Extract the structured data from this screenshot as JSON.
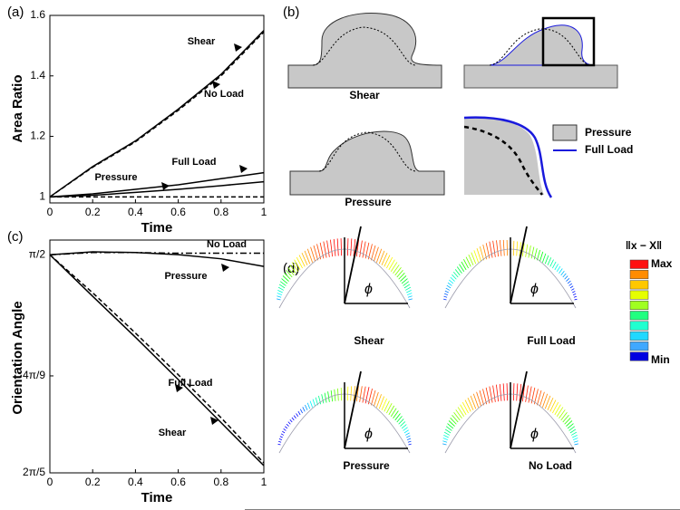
{
  "chart_data": [
    {
      "type": "line",
      "label": "(a)",
      "xlabel": "Time",
      "ylabel": "Area Ratio",
      "x": [
        0,
        0.2,
        0.4,
        0.6,
        0.8,
        1
      ],
      "xlim": [
        0,
        1
      ],
      "xticks": [
        0,
        0.2,
        0.4,
        0.6,
        0.8,
        1
      ],
      "ylim": [
        0.98,
        1.6
      ],
      "yticks": [
        1,
        1.2,
        1.4,
        1.6
      ],
      "series": [
        {
          "name": "Shear",
          "color": "#000000",
          "dash": "solid",
          "values": [
            1,
            1.1,
            1.185,
            1.29,
            1.405,
            1.55
          ]
        },
        {
          "name": "No Load",
          "color": "#000000",
          "dash": "dashed",
          "values": [
            1,
            1.098,
            1.182,
            1.286,
            1.4,
            1.545
          ]
        },
        {
          "name": "Full Load",
          "color": "#000000",
          "dash": "solid",
          "values": [
            1,
            1.01,
            1.025,
            1.04,
            1.06,
            1.08
          ]
        },
        {
          "name": "Pressure",
          "color": "#000000",
          "dash": "solid",
          "values": [
            1,
            1.005,
            1.015,
            1.025,
            1.037,
            1.05
          ]
        },
        {
          "color": "#000000",
          "dash": "dashed",
          "values": [
            1,
            1,
            1,
            1,
            1,
            1
          ]
        }
      ]
    },
    {
      "type": "line",
      "label": "(c)",
      "xlabel": "Time",
      "ylabel": "Orientation Angle",
      "x": [
        0,
        0.2,
        0.4,
        0.6,
        0.8,
        1
      ],
      "xlim": [
        0,
        1
      ],
      "xticks": [
        0,
        0.2,
        0.4,
        0.6,
        0.8,
        1
      ],
      "ylim": [
        1.2566,
        1.592
      ],
      "yticks": [
        {
          "value": 1.5708,
          "label": "π/2"
        },
        {
          "value": 1.3963,
          "label": "4π/9"
        },
        {
          "value": 1.2566,
          "label": "2π/5"
        }
      ],
      "series": [
        {
          "name": "No Load",
          "color": "#000000",
          "dash": "dashdot",
          "values": [
            1.5708,
            1.574,
            1.574,
            1.573,
            1.573,
            1.573
          ]
        },
        {
          "name": "Pressure",
          "color": "#000000",
          "dash": "solid",
          "values": [
            1.5708,
            1.575,
            1.574,
            1.571,
            1.565,
            1.554
          ]
        },
        {
          "name": "Full Load",
          "color": "#000000",
          "dash": "dashed",
          "values": [
            1.5708,
            1.516,
            1.458,
            1.398,
            1.336,
            1.271
          ]
        },
        {
          "name": "Shear",
          "color": "#000000",
          "dash": "solid",
          "values": [
            1.5708,
            1.511,
            1.452,
            1.391,
            1.329,
            1.267
          ]
        }
      ]
    }
  ],
  "panel_b": {
    "label": "(b)",
    "captions": [
      "Shear",
      "Pressure"
    ],
    "legend": [
      "Pressure",
      "Full Load"
    ]
  },
  "panel_d": {
    "label": "(d)",
    "colorbar_title": "‖x − X‖",
    "colorbar_max": "Max",
    "colorbar_min": "Min",
    "captions": [
      "Shear",
      "Full Load",
      "Pressure",
      "No Load"
    ],
    "angle_symbol": "ϕ"
  }
}
